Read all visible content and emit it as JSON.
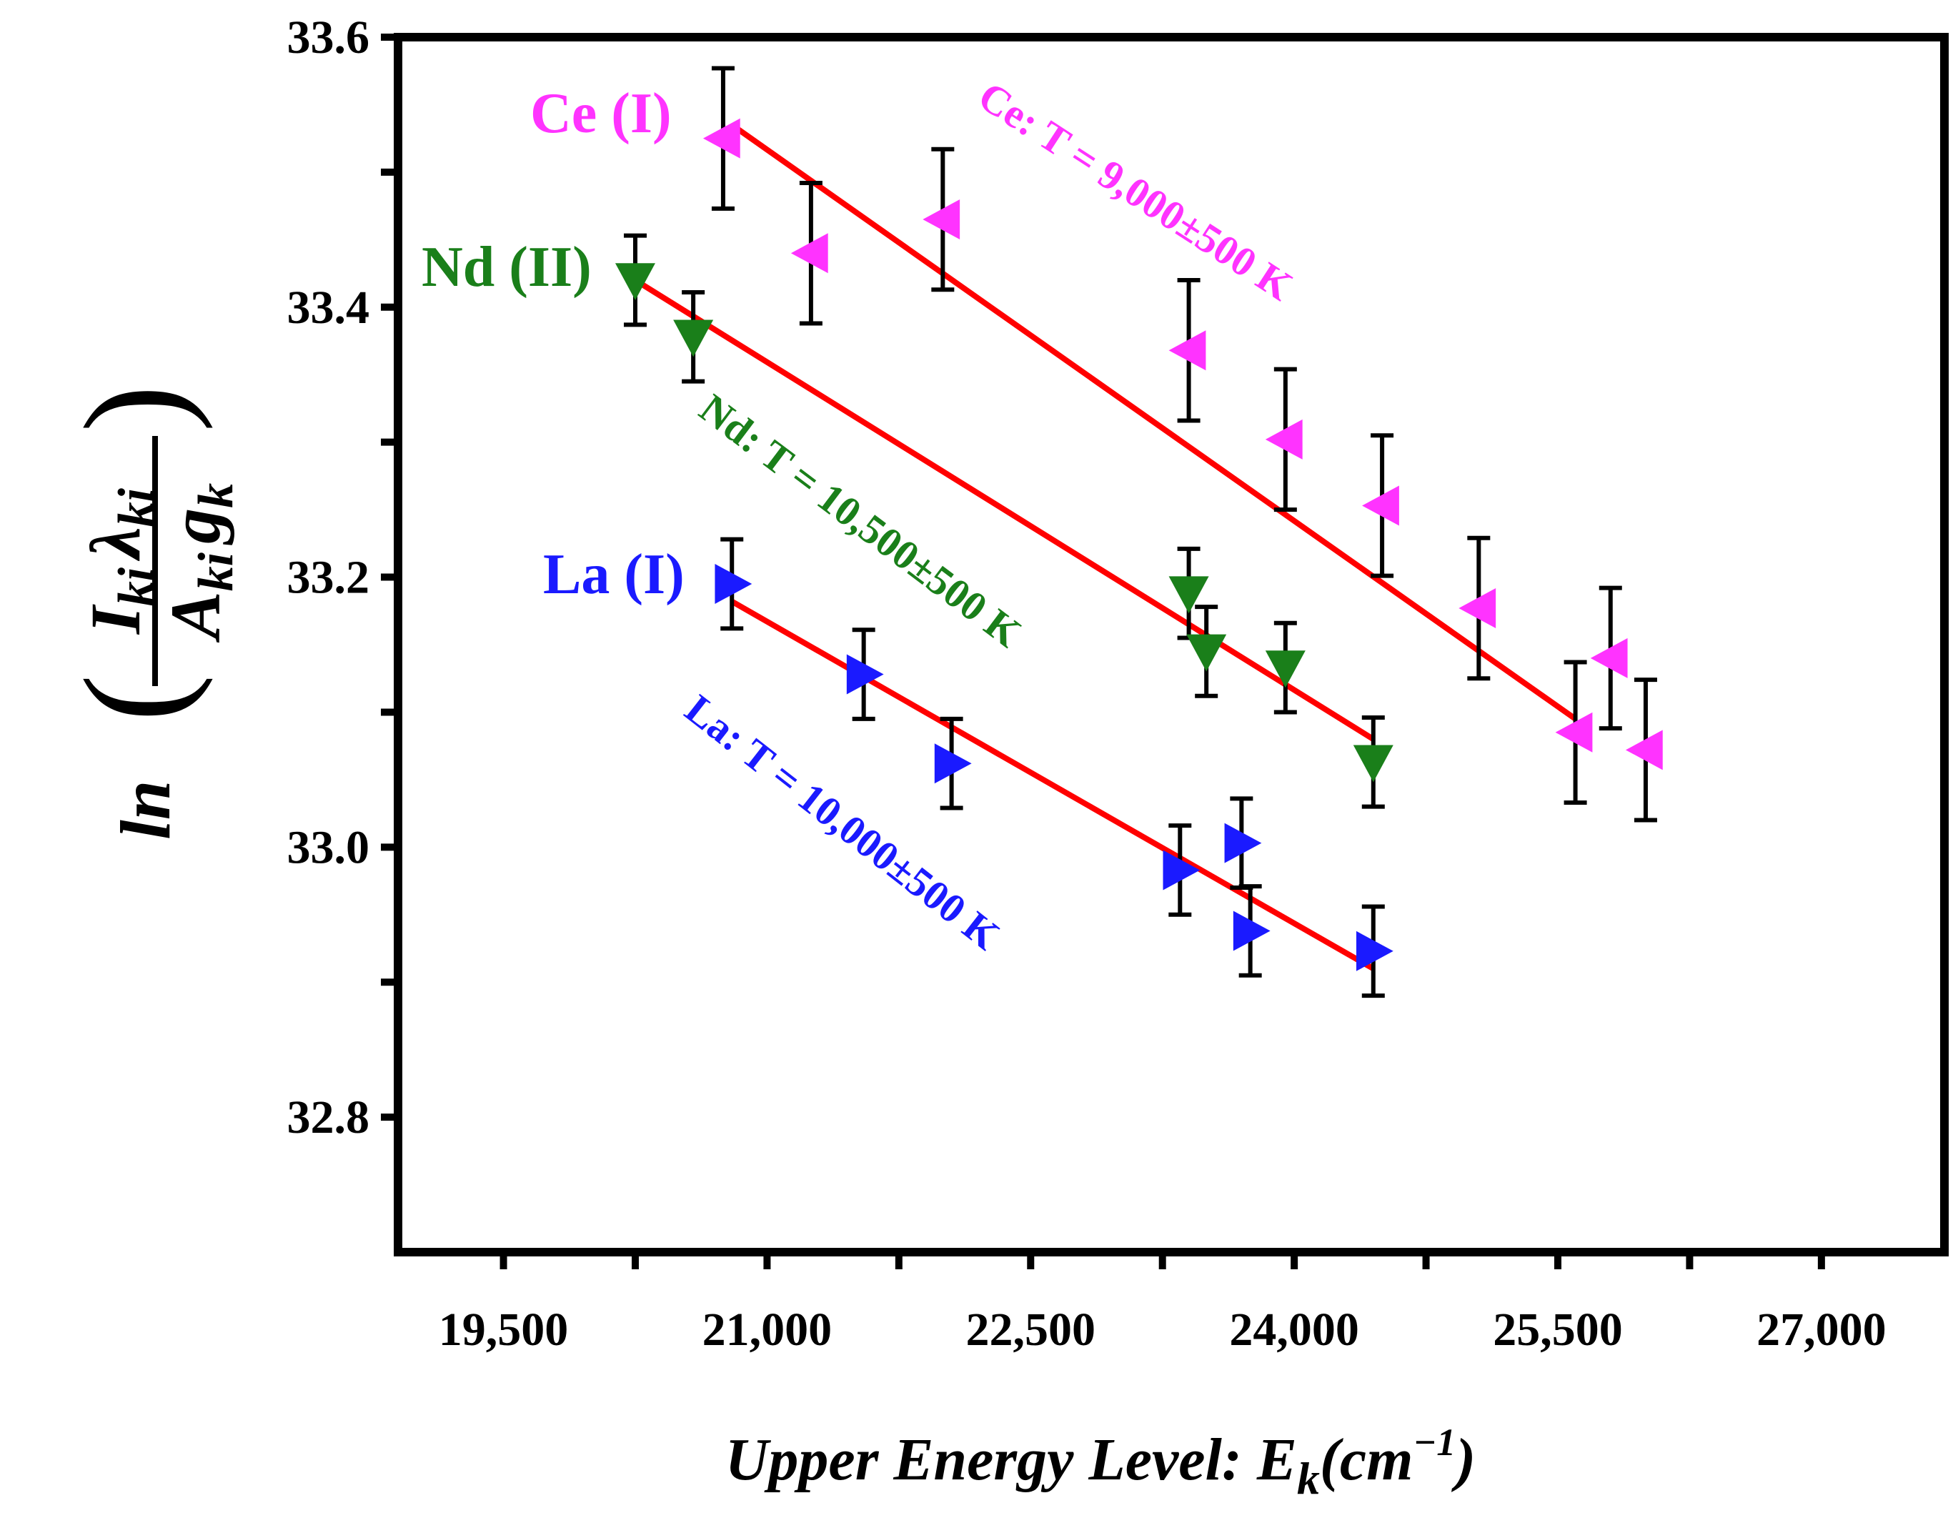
{
  "chart_data": {
    "type": "scatter",
    "title": "",
    "xlabel_main": "Upper Energy Level: E",
    "xlabel_sub": "k",
    "xlabel_unit_open": "(cm",
    "xlabel_unit_exp": "−1",
    "xlabel_unit_close": ")",
    "ylabel_prefix": "ln",
    "ylabel_num": "I",
    "ylabel_num_sub": "ki",
    "ylabel_num2": "λ",
    "ylabel_num2_sub": "ki",
    "ylabel_den": "A",
    "ylabel_den_sub": "ki",
    "ylabel_den2": "g",
    "ylabel_den2_sub": "k",
    "xlim": [
      18900,
      27700
    ],
    "ylim": [
      32.7,
      33.6
    ],
    "x_ticks": [
      19500,
      21000,
      22500,
      24000,
      25500,
      27000
    ],
    "x_tick_labels": [
      "19,500",
      "21,000",
      "22,500",
      "24,000",
      "25,500",
      "27,000"
    ],
    "y_ticks": [
      32.8,
      33.0,
      33.2,
      33.4,
      33.6
    ],
    "y_tick_labels": [
      "32.8",
      "33.0",
      "33.2",
      "33.4",
      "33.6"
    ],
    "grid": false,
    "series": [
      {
        "name": "Ce (I)",
        "label": "Ce (I)",
        "color": "#ff33ff",
        "marker": "triangle-left",
        "fit_label": "Ce: T = 9,000±500 K",
        "fit": {
          "x": [
            20800,
            25600
          ],
          "y": [
            33.535,
            33.095
          ]
        },
        "points": [
          {
            "x": 20750,
            "y": 33.525,
            "err": 0.052
          },
          {
            "x": 21250,
            "y": 33.44,
            "err": 0.052
          },
          {
            "x": 22000,
            "y": 33.465,
            "err": 0.052
          },
          {
            "x": 23400,
            "y": 33.368,
            "err": 0.052
          },
          {
            "x": 23950,
            "y": 33.302,
            "err": 0.052
          },
          {
            "x": 24500,
            "y": 33.253,
            "err": 0.052
          },
          {
            "x": 25050,
            "y": 33.177,
            "err": 0.052
          },
          {
            "x": 25600,
            "y": 33.085,
            "err": 0.052
          },
          {
            "x": 25800,
            "y": 33.14,
            "err": 0.052
          },
          {
            "x": 26000,
            "y": 33.072,
            "err": 0.052
          }
        ]
      },
      {
        "name": "Nd (II)",
        "label": "Nd (II)",
        "color": "#1a7f1a",
        "marker": "triangle-down",
        "fit_label": "Nd: T = 10,500±500 K",
        "fit": {
          "x": [
            20250,
            24450
          ],
          "y": [
            33.42,
            33.08
          ]
        },
        "points": [
          {
            "x": 20250,
            "y": 33.42,
            "err": 0.033
          },
          {
            "x": 20580,
            "y": 33.378,
            "err": 0.033
          },
          {
            "x": 23400,
            "y": 33.188,
            "err": 0.033
          },
          {
            "x": 23500,
            "y": 33.145,
            "err": 0.033
          },
          {
            "x": 23950,
            "y": 33.133,
            "err": 0.033
          },
          {
            "x": 24450,
            "y": 33.063,
            "err": 0.033
          }
        ]
      },
      {
        "name": "La (I)",
        "label": "La (I)",
        "color": "#1a1aff",
        "marker": "triangle-right",
        "fit_label": "La: T = 10,000±500 K",
        "fit": {
          "x": [
            20800,
            24450
          ],
          "y": [
            33.182,
            32.91
          ]
        },
        "points": [
          {
            "x": 20800,
            "y": 33.195,
            "err": 0.033
          },
          {
            "x": 21550,
            "y": 33.128,
            "err": 0.033
          },
          {
            "x": 22050,
            "y": 33.062,
            "err": 0.033
          },
          {
            "x": 23350,
            "y": 32.983,
            "err": 0.033
          },
          {
            "x": 23700,
            "y": 33.003,
            "err": 0.033
          },
          {
            "x": 23750,
            "y": 32.938,
            "err": 0.033
          },
          {
            "x": 24450,
            "y": 32.923,
            "err": 0.033
          }
        ]
      }
    ]
  }
}
